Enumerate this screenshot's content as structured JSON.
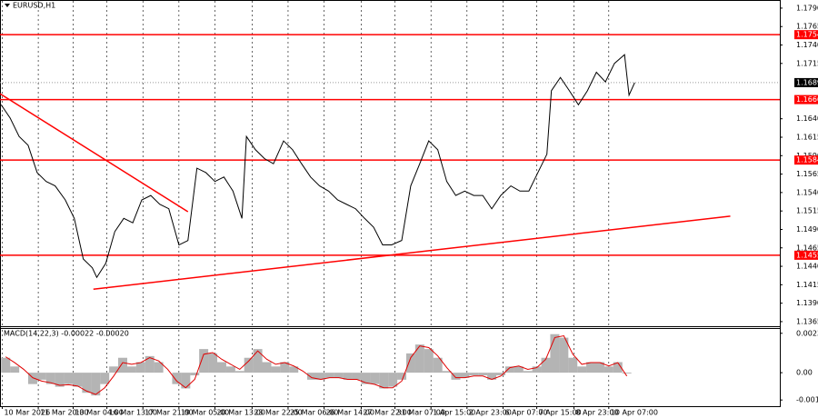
{
  "chart_data": [
    {
      "type": "line",
      "title": "EURUSD,H1",
      "color": "#000000",
      "x": [
        0,
        8,
        16,
        24,
        32,
        40,
        48,
        57,
        65,
        73,
        81,
        85,
        93,
        101,
        109,
        117,
        125,
        133,
        141,
        149,
        158,
        166,
        174,
        182,
        190,
        198,
        206,
        214,
        218,
        226,
        234,
        242,
        251,
        259,
        267,
        275,
        283,
        291,
        299,
        307,
        315,
        323,
        331,
        339,
        347,
        356,
        364,
        372,
        380,
        388,
        396,
        404,
        412,
        420,
        428,
        436,
        444,
        453,
        461,
        469,
        477,
        485,
        489,
        497,
        505,
        513,
        521,
        529,
        537,
        545,
        554,
        558,
        563
      ],
      "values": [
        1.1659,
        1.1641,
        1.1616,
        1.1604,
        1.1567,
        1.1555,
        1.1549,
        1.153,
        1.1505,
        1.145,
        1.1438,
        1.1425,
        1.1444,
        1.1487,
        1.1505,
        1.1499,
        1.153,
        1.1536,
        1.1524,
        1.1518,
        1.1469,
        1.1475,
        1.1573,
        1.1567,
        1.1555,
        1.1561,
        1.1542,
        1.1505,
        1.1616,
        1.1598,
        1.1586,
        1.1579,
        1.161,
        1.1598,
        1.1579,
        1.1561,
        1.1549,
        1.1542,
        1.153,
        1.1524,
        1.1518,
        1.1505,
        1.1493,
        1.1469,
        1.1469,
        1.1475,
        1.1549,
        1.1579,
        1.161,
        1.1598,
        1.1555,
        1.1536,
        1.1542,
        1.1536,
        1.1536,
        1.1518,
        1.1536,
        1.1549,
        1.1542,
        1.1542,
        1.1567,
        1.1592,
        1.1678,
        1.1696,
        1.1678,
        1.1659,
        1.1678,
        1.1703,
        1.169,
        1.1715,
        1.1727,
        1.1672,
        1.1689
      ],
      "xlim": [
        -1,
        692
      ],
      "ylim": [
        1.136,
        1.1801
      ],
      "yticks": [
        {
          "value": 1.179,
          "label": "1.1790"
        },
        1.1765,
        {
          "value": 1.174,
          "label": "1.1740"
        },
        1.1715,
        {
          "value": 1.164,
          "label": "1.1640"
        },
        1.1615,
        {
          "value": 1.159,
          "label": "1.1590"
        },
        1.1565,
        {
          "value": 1.154,
          "label": "1.1540"
        },
        1.1515,
        {
          "value": 1.149,
          "label": "1.1490"
        },
        1.1465,
        {
          "value": 1.144,
          "label": "1.1440"
        },
        1.1415,
        {
          "value": 1.139,
          "label": "1.1390"
        },
        1.1365
      ],
      "xticks": [
        {
          "value": 1,
          "label": "10 Mar 2026"
        },
        {
          "value": 33,
          "label": "11 Mar 20:00"
        },
        {
          "value": 64,
          "label": "13 Mar 04:00"
        },
        {
          "value": 94,
          "label": "16 Mar 13:00"
        },
        {
          "value": 126,
          "label": "17 Mar 21:00"
        },
        {
          "value": 158,
          "label": "19 Mar 05:00"
        },
        {
          "value": 190,
          "label": "20 Mar 13:00"
        },
        {
          "value": 223,
          "label": "23 Mar 22:00"
        },
        {
          "value": 255,
          "label": "25 Mar 06:00"
        },
        {
          "value": 287,
          "label": "26 Mar 14:00"
        },
        {
          "value": 320,
          "label": "27 Mar 22:00"
        },
        {
          "value": 350,
          "label": "31 Mar 07:00"
        },
        {
          "value": 382,
          "label": "1 Apr 15:00"
        },
        {
          "value": 414,
          "label": "2 Apr 23:00"
        },
        {
          "value": 446,
          "label": "6 Apr 07:00"
        },
        {
          "value": 476,
          "label": "7 Apr 15:00"
        },
        {
          "value": 509,
          "label": "8 Apr 23:00"
        },
        {
          "value": 540,
          "label": "10 Apr 07:00"
        }
      ],
      "levels": [
        1.1754,
        1.1666,
        1.1584,
        1.1455
      ],
      "level_color": "#ff0000",
      "last_price": 1.1689,
      "trendlines": [
        {
          "x": [
            -1,
            166
          ],
          "values": [
            1.1674,
            1.1514
          ]
        },
        {
          "x": [
            82,
            648
          ],
          "values": [
            1.1409,
            1.1508
          ]
        }
      ],
      "grid": true
    },
    {
      "type": "macd",
      "title": "MACD(14,22,3) -0.00022 -0.00020",
      "x": [
        0,
        8,
        16,
        24,
        32,
        40,
        48,
        56,
        64,
        72,
        80,
        88,
        96,
        104,
        112,
        120,
        128,
        136,
        144,
        152,
        160,
        168,
        176,
        184,
        192,
        200,
        208,
        216,
        224,
        232,
        240,
        248,
        256,
        264,
        272,
        280,
        288,
        296,
        304,
        312,
        320,
        328,
        336,
        344,
        352,
        360,
        368,
        376,
        384,
        392,
        400,
        408,
        416,
        424,
        432,
        440,
        448,
        456,
        464,
        472,
        480,
        488,
        496,
        504,
        512,
        520,
        528,
        536,
        544,
        552
      ],
      "series": [
        {
          "type": "bar",
          "color": "#b4b4b4",
          "values": [
            0.00089,
            0.00037,
            0,
            -0.00068,
            -0.00042,
            -0.00068,
            -0.00084,
            -0.00068,
            -0.00084,
            -0.0012,
            -0.00136,
            -0.00068,
            0.00037,
            0.00089,
            0.00037,
            0.00063,
            0.00099,
            0.00063,
            0,
            -0.00068,
            -0.00094,
            -0.00016,
            0.00141,
            0.00115,
            0.00063,
            0.00037,
            0.0001,
            0.00089,
            0.00141,
            0.00063,
            0.00037,
            0.00063,
            0.00037,
            0,
            -0.00042,
            -0.00042,
            -0.00031,
            -0.00031,
            -0.00042,
            -0.00042,
            -0.00068,
            -0.00068,
            -0.00094,
            -0.00084,
            -0.00042,
            0.00115,
            0.00168,
            0.00141,
            0.00089,
            0.0001,
            -0.00042,
            -0.00031,
            -0.00016,
            -0.00016,
            -0.00042,
            -0.00016,
            0.00037,
            0.00037,
            0.0001,
            0.00037,
            0.00089,
            0.0023,
            0.00209,
            0.00089,
            0.00037,
            0.00063,
            0.00063,
            0.00037,
            0.00063,
            -5e-05
          ]
        },
        {
          "type": "line",
          "color": "#e00000",
          "values": [
            0.00095,
            0.0006,
            0.0002,
            -0.0003,
            -0.0005,
            -0.0006,
            -0.00075,
            -0.00072,
            -0.0008,
            -0.0011,
            -0.0013,
            -0.0009,
            -0.0002,
            0.0006,
            0.0005,
            0.0006,
            0.0009,
            0.0007,
            0.0002,
            -0.0005,
            -0.0009,
            -0.0004,
            0.0011,
            0.0012,
            0.0008,
            0.0005,
            0.0002,
            0.0007,
            0.0013,
            0.0008,
            0.0005,
            0.0006,
            0.0004,
            0.0001,
            -0.0003,
            -0.0004,
            -0.0003,
            -0.0003,
            -0.0004,
            -0.0004,
            -0.0006,
            -0.0007,
            -0.0009,
            -0.0009,
            -0.0005,
            0.0009,
            0.0016,
            0.0015,
            0.001,
            0.0003,
            -0.0003,
            -0.0003,
            -0.0002,
            -0.0002,
            -0.0004,
            -0.0002,
            0.0003,
            0.0004,
            0.0002,
            0.0003,
            0.0008,
            0.0021,
            0.0022,
            0.0011,
            0.0005,
            0.0006,
            0.0006,
            0.0004,
            0.0006,
            -0.0002
          ]
        }
      ],
      "xlim": [
        -1,
        692
      ],
      "ylim": [
        -0.002,
        0.00261
      ],
      "yticks": [
        0.00235,
        {
          "value": 0,
          "label": "0.00"
        },
        -0.00163
      ]
    }
  ]
}
